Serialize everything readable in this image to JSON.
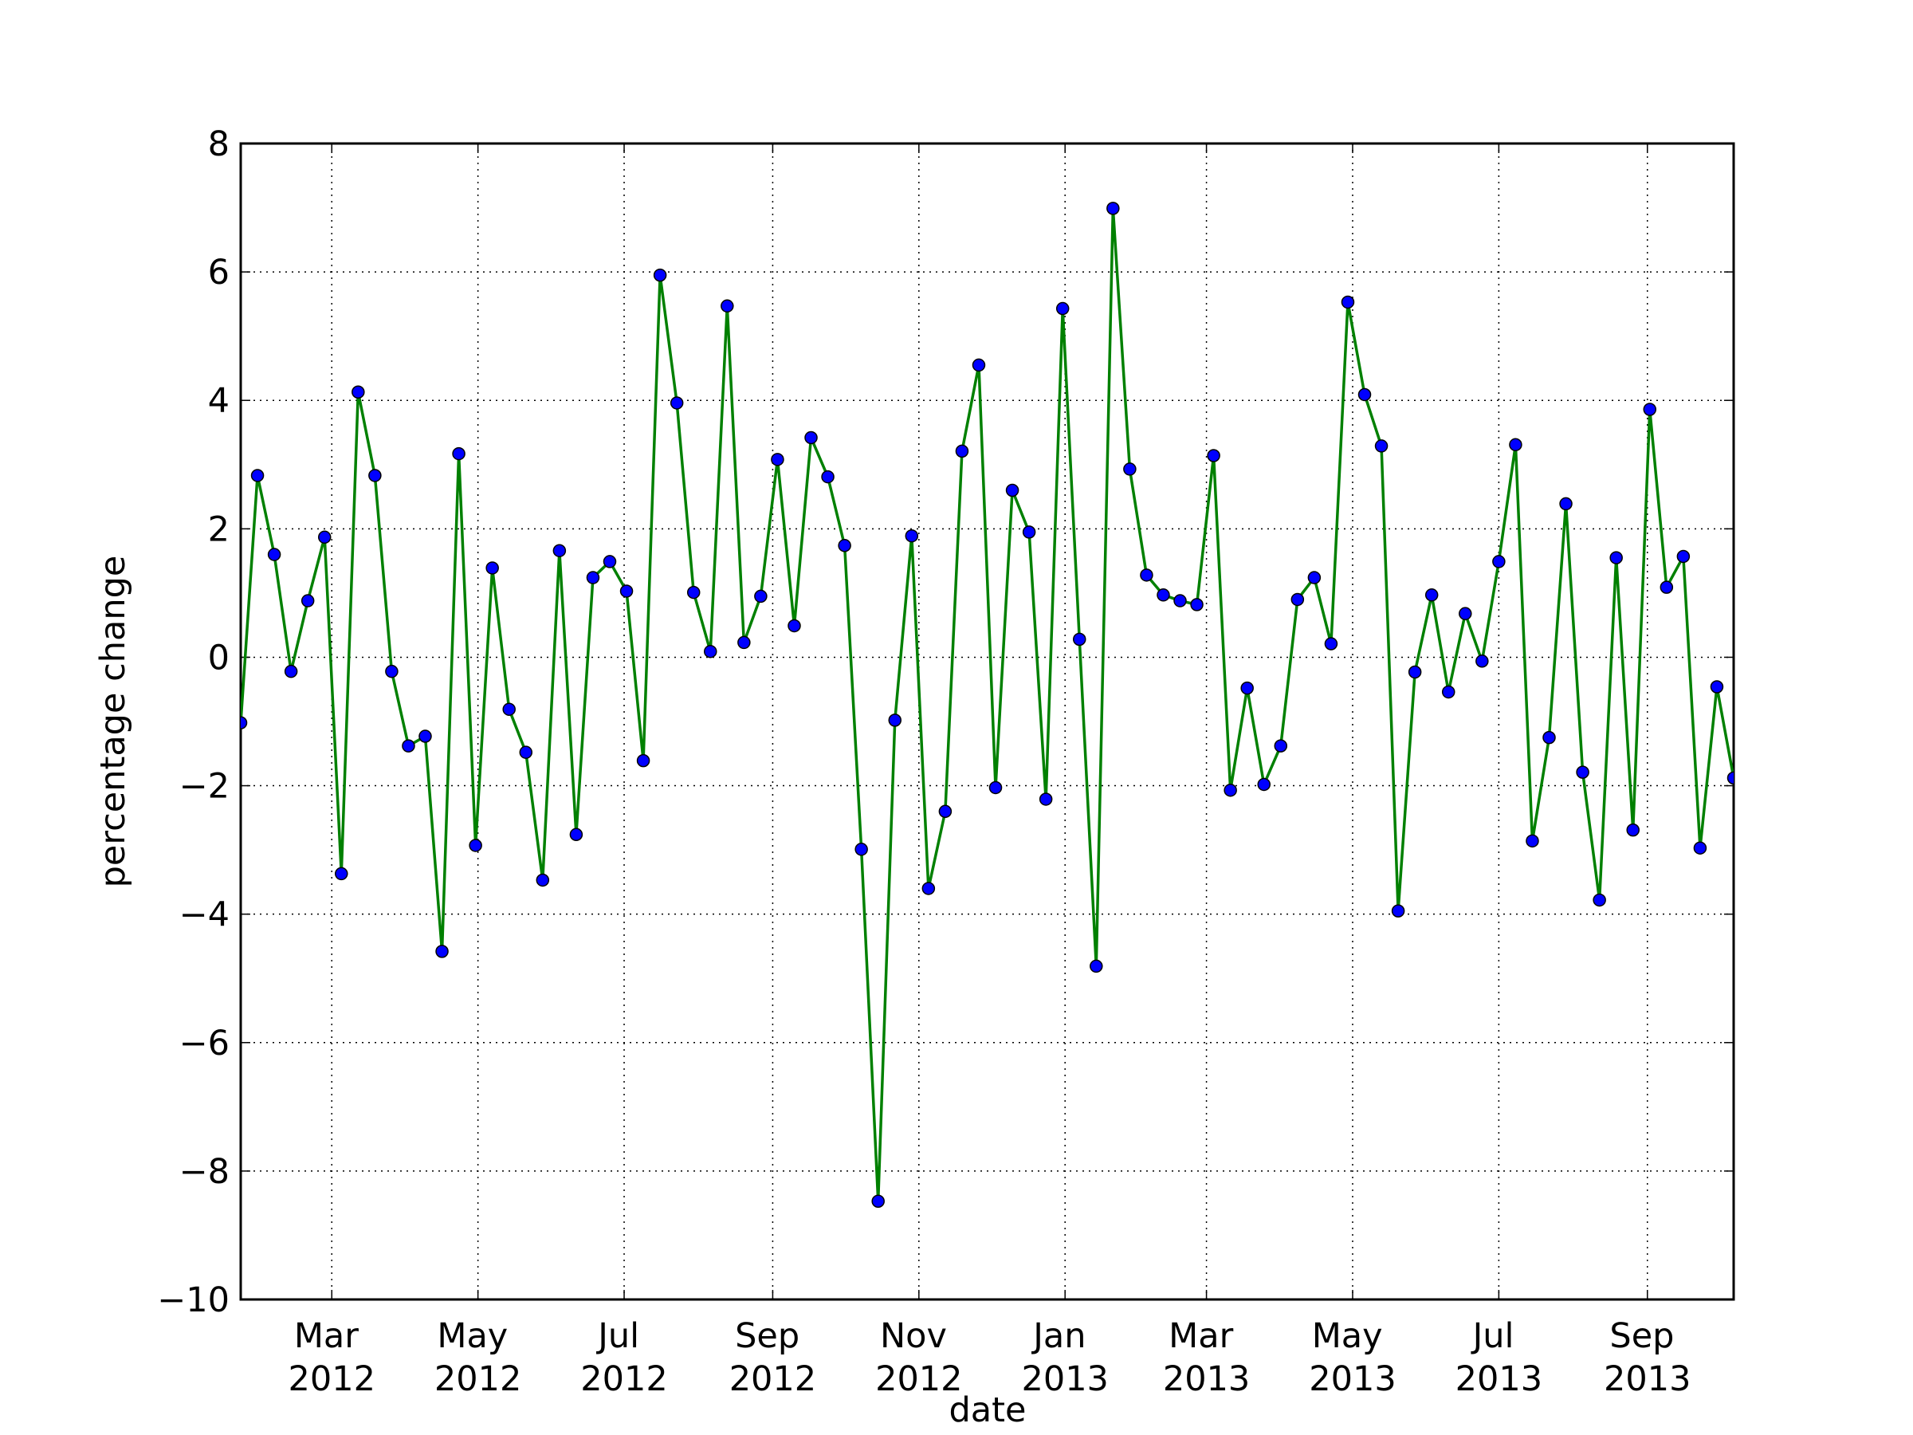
{
  "chart_data": {
    "type": "line",
    "xlabel": "date",
    "ylabel": "percentage change",
    "x": [
      "2012-01-23",
      "2012-01-30",
      "2012-02-06",
      "2012-02-13",
      "2012-02-20",
      "2012-02-27",
      "2012-03-05",
      "2012-03-12",
      "2012-03-19",
      "2012-03-26",
      "2012-04-02",
      "2012-04-09",
      "2012-04-16",
      "2012-04-23",
      "2012-04-30",
      "2012-05-07",
      "2012-05-14",
      "2012-05-21",
      "2012-05-28",
      "2012-06-04",
      "2012-06-11",
      "2012-06-18",
      "2012-06-25",
      "2012-07-02",
      "2012-07-09",
      "2012-07-16",
      "2012-07-23",
      "2012-07-30",
      "2012-08-06",
      "2012-08-13",
      "2012-08-20",
      "2012-08-27",
      "2012-09-03",
      "2012-09-10",
      "2012-09-17",
      "2012-09-24",
      "2012-10-01",
      "2012-10-08",
      "2012-10-15",
      "2012-10-22",
      "2012-10-29",
      "2012-11-05",
      "2012-11-12",
      "2012-11-19",
      "2012-11-26",
      "2012-12-03",
      "2012-12-10",
      "2012-12-17",
      "2012-12-24",
      "2012-12-31",
      "2013-01-07",
      "2013-01-14",
      "2013-01-21",
      "2013-01-28",
      "2013-02-04",
      "2013-02-11",
      "2013-02-18",
      "2013-02-25",
      "2013-03-04",
      "2013-03-11",
      "2013-03-18",
      "2013-03-25",
      "2013-04-01",
      "2013-04-08",
      "2013-04-15",
      "2013-04-22",
      "2013-04-29",
      "2013-05-06",
      "2013-05-13",
      "2013-05-20",
      "2013-05-27",
      "2013-06-03",
      "2013-06-10",
      "2013-06-17",
      "2013-06-24",
      "2013-07-01",
      "2013-07-08",
      "2013-07-15",
      "2013-07-22",
      "2013-07-29",
      "2013-08-05",
      "2013-08-12",
      "2013-08-19",
      "2013-08-26",
      "2013-09-02",
      "2013-09-09",
      "2013-09-16",
      "2013-09-23",
      "2013-09-30",
      "2013-10-07"
    ],
    "series": [
      {
        "line_color": "#008000",
        "marker_color": "#0000ff",
        "values": [
          -1.02,
          2.83,
          1.6,
          -0.22,
          0.88,
          1.87,
          -3.37,
          4.13,
          2.83,
          -0.22,
          -1.38,
          -1.23,
          -4.58,
          3.17,
          -2.93,
          1.39,
          -0.81,
          -1.48,
          -3.47,
          1.66,
          -2.76,
          1.24,
          1.49,
          1.03,
          -1.61,
          5.95,
          3.96,
          1.01,
          0.09,
          5.47,
          0.23,
          0.95,
          3.08,
          0.49,
          3.42,
          2.81,
          1.74,
          -2.99,
          -8.47,
          -0.98,
          1.89,
          -3.6,
          -2.4,
          3.21,
          4.55,
          -2.03,
          2.6,
          1.95,
          -2.21,
          5.43,
          0.28,
          -4.81,
          6.99,
          2.93,
          1.28,
          0.97,
          0.88,
          0.82,
          3.14,
          -2.07,
          -0.48,
          -1.98,
          -1.38,
          0.9,
          1.24,
          0.21,
          5.53,
          4.09,
          3.29,
          -3.95,
          -0.23,
          0.97,
          -0.54,
          0.68,
          -0.06,
          1.49,
          3.31,
          -2.86,
          -1.25,
          2.39,
          -1.79,
          -3.78,
          1.55,
          -2.69,
          3.86,
          1.09,
          1.57,
          -2.97,
          -0.46,
          -1.88
        ]
      }
    ],
    "xlim": [
      "2012-01-23",
      "2013-10-07"
    ],
    "xticks": [
      {
        "value": "2012-03-01",
        "label": "Mar 2012"
      },
      {
        "value": "2012-05-01",
        "label": "May 2012"
      },
      {
        "value": "2012-07-01",
        "label": "Jul 2012"
      },
      {
        "value": "2012-09-01",
        "label": "Sep 2012"
      },
      {
        "value": "2012-11-01",
        "label": "Nov 2012"
      },
      {
        "value": "2013-01-01",
        "label": "Jan 2013"
      },
      {
        "value": "2013-03-01",
        "label": "Mar 2013"
      },
      {
        "value": "2013-05-01",
        "label": "May 2013"
      },
      {
        "value": "2013-07-01",
        "label": "Jul 2013"
      },
      {
        "value": "2013-09-01",
        "label": "Sep 2013"
      }
    ],
    "ylim": [
      -10,
      8
    ],
    "yticks": [
      {
        "value": -10,
        "label": "−10"
      },
      {
        "value": -8,
        "label": "−8"
      },
      {
        "value": -6,
        "label": "−6"
      },
      {
        "value": -4,
        "label": "−4"
      },
      {
        "value": -2,
        "label": "−2"
      },
      0,
      2,
      4,
      6,
      8
    ],
    "grid": true
  }
}
